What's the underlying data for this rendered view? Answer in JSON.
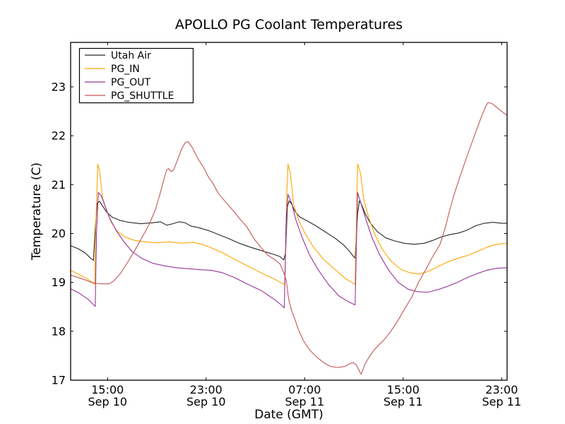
{
  "figure": {
    "background": "#ffffff",
    "frame_color": "#000000"
  },
  "chart_data": {
    "type": "line",
    "title": "APOLLO PG Coolant Temperatures",
    "xlabel": "Date (GMT)",
    "ylabel": "Temperature (C)",
    "grid": false,
    "x_axis": {
      "unit": "hours_since_Sep10_12:00_GMT",
      "range": [
        0,
        35.44
      ],
      "ticks": [
        {
          "value": 3,
          "time": "15:00",
          "date": "Sep 10"
        },
        {
          "value": 11,
          "time": "23:00",
          "date": "Sep 10"
        },
        {
          "value": 19,
          "time": "07:00",
          "date": "Sep 11"
        },
        {
          "value": 27,
          "time": "15:00",
          "date": "Sep 11"
        },
        {
          "value": 35,
          "time": "23:00",
          "date": "Sep 11"
        }
      ]
    },
    "y_axis": {
      "range": [
        17,
        23.91
      ],
      "ticks": [
        17,
        18,
        19,
        20,
        21,
        22,
        23
      ]
    },
    "legend": {
      "position": "upper left",
      "entries": [
        "Utah Air",
        "PG_IN",
        "PG_OUT",
        "PG_SHUTTLE"
      ]
    },
    "series": [
      {
        "name": "Utah Air",
        "color": "#262626",
        "points": [
          [
            0,
            19.75
          ],
          [
            0.6,
            19.69
          ],
          [
            1.2,
            19.6
          ],
          [
            1.6,
            19.5
          ],
          [
            1.85,
            19.45
          ],
          [
            2.0,
            20.1
          ],
          [
            2.15,
            20.62
          ],
          [
            2.35,
            20.66
          ],
          [
            2.6,
            20.56
          ],
          [
            2.95,
            20.43
          ],
          [
            3.4,
            20.33
          ],
          [
            4.0,
            20.27
          ],
          [
            4.7,
            20.23
          ],
          [
            5.7,
            20.2
          ],
          [
            6.6,
            20.22
          ],
          [
            7.3,
            20.24
          ],
          [
            7.8,
            20.17
          ],
          [
            8.3,
            20.2
          ],
          [
            8.8,
            20.24
          ],
          [
            9.3,
            20.22
          ],
          [
            9.8,
            20.15
          ],
          [
            10.4,
            20.12
          ],
          [
            11.2,
            20.06
          ],
          [
            12.0,
            19.98
          ],
          [
            12.8,
            19.9
          ],
          [
            13.7,
            19.8
          ],
          [
            14.6,
            19.72
          ],
          [
            15.5,
            19.65
          ],
          [
            16.4,
            19.58
          ],
          [
            17.0,
            19.53
          ],
          [
            17.3,
            19.46
          ],
          [
            17.45,
            19.6
          ],
          [
            17.6,
            20.55
          ],
          [
            17.75,
            20.67
          ],
          [
            17.95,
            20.6
          ],
          [
            18.2,
            20.46
          ],
          [
            18.6,
            20.34
          ],
          [
            19.2,
            20.26
          ],
          [
            19.9,
            20.16
          ],
          [
            20.7,
            20.03
          ],
          [
            21.5,
            19.9
          ],
          [
            22.2,
            19.76
          ],
          [
            22.7,
            19.62
          ],
          [
            23.0,
            19.52
          ],
          [
            23.1,
            19.5
          ],
          [
            23.3,
            20.4
          ],
          [
            23.45,
            20.67
          ],
          [
            23.65,
            20.58
          ],
          [
            23.95,
            20.39
          ],
          [
            24.35,
            20.21
          ],
          [
            24.9,
            20.04
          ],
          [
            25.6,
            19.91
          ],
          [
            26.3,
            19.85
          ],
          [
            27.1,
            19.8
          ],
          [
            27.9,
            19.78
          ],
          [
            28.7,
            19.8
          ],
          [
            29.4,
            19.86
          ],
          [
            30.1,
            19.93
          ],
          [
            30.8,
            19.98
          ],
          [
            31.5,
            20.01
          ],
          [
            32.2,
            20.07
          ],
          [
            32.9,
            20.16
          ],
          [
            33.6,
            20.21
          ],
          [
            34.3,
            20.23
          ],
          [
            35.0,
            20.21
          ],
          [
            35.44,
            20.21
          ]
        ]
      },
      {
        "name": "PG_IN",
        "color": "#ffa500",
        "points": [
          [
            0,
            19.25
          ],
          [
            0.7,
            19.16
          ],
          [
            1.3,
            19.08
          ],
          [
            1.7,
            19.01
          ],
          [
            1.95,
            18.96
          ],
          [
            2.05,
            20.2
          ],
          [
            2.2,
            21.42
          ],
          [
            2.35,
            21.28
          ],
          [
            2.6,
            20.73
          ],
          [
            2.9,
            20.48
          ],
          [
            3.3,
            20.23
          ],
          [
            3.8,
            20.04
          ],
          [
            4.4,
            19.93
          ],
          [
            5.2,
            19.86
          ],
          [
            6.0,
            19.83
          ],
          [
            7.0,
            19.81
          ],
          [
            8.0,
            19.83
          ],
          [
            9.0,
            19.8
          ],
          [
            9.9,
            19.82
          ],
          [
            10.7,
            19.78
          ],
          [
            11.5,
            19.7
          ],
          [
            12.4,
            19.6
          ],
          [
            13.4,
            19.46
          ],
          [
            14.5,
            19.32
          ],
          [
            15.6,
            19.18
          ],
          [
            16.6,
            19.06
          ],
          [
            17.2,
            18.98
          ],
          [
            17.4,
            18.95
          ],
          [
            17.55,
            20.8
          ],
          [
            17.65,
            21.42
          ],
          [
            17.85,
            21.22
          ],
          [
            18.1,
            20.6
          ],
          [
            18.5,
            20.28
          ],
          [
            19.0,
            20.02
          ],
          [
            19.7,
            19.73
          ],
          [
            20.5,
            19.48
          ],
          [
            21.4,
            19.28
          ],
          [
            22.3,
            19.08
          ],
          [
            22.9,
            18.99
          ],
          [
            23.1,
            18.96
          ],
          [
            23.3,
            21.42
          ],
          [
            23.55,
            21.22
          ],
          [
            23.8,
            20.7
          ],
          [
            24.2,
            20.33
          ],
          [
            24.7,
            19.98
          ],
          [
            25.3,
            19.68
          ],
          [
            26.0,
            19.44
          ],
          [
            26.8,
            19.27
          ],
          [
            27.5,
            19.2
          ],
          [
            28.3,
            19.17
          ],
          [
            29.0,
            19.22
          ],
          [
            29.8,
            19.32
          ],
          [
            30.6,
            19.42
          ],
          [
            31.4,
            19.49
          ],
          [
            32.2,
            19.55
          ],
          [
            33.0,
            19.63
          ],
          [
            33.8,
            19.72
          ],
          [
            34.6,
            19.78
          ],
          [
            35.44,
            19.8
          ]
        ]
      },
      {
        "name": "PG_OUT",
        "color": "#993399",
        "points": [
          [
            0,
            18.87
          ],
          [
            0.7,
            18.78
          ],
          [
            1.4,
            18.66
          ],
          [
            1.8,
            18.56
          ],
          [
            2.0,
            18.51
          ],
          [
            2.1,
            20.0
          ],
          [
            2.25,
            20.84
          ],
          [
            2.5,
            20.77
          ],
          [
            2.8,
            20.56
          ],
          [
            3.2,
            20.3
          ],
          [
            3.7,
            20.06
          ],
          [
            4.3,
            19.84
          ],
          [
            5.0,
            19.63
          ],
          [
            5.8,
            19.49
          ],
          [
            6.7,
            19.39
          ],
          [
            7.6,
            19.34
          ],
          [
            8.6,
            19.3
          ],
          [
            9.6,
            19.28
          ],
          [
            10.5,
            19.26
          ],
          [
            11.4,
            19.25
          ],
          [
            12.3,
            19.2
          ],
          [
            13.3,
            19.1
          ],
          [
            14.4,
            18.96
          ],
          [
            15.5,
            18.83
          ],
          [
            16.5,
            18.66
          ],
          [
            17.1,
            18.54
          ],
          [
            17.35,
            18.48
          ],
          [
            17.5,
            20.3
          ],
          [
            17.65,
            20.8
          ],
          [
            17.95,
            20.62
          ],
          [
            18.3,
            20.27
          ],
          [
            18.8,
            19.92
          ],
          [
            19.4,
            19.56
          ],
          [
            20.1,
            19.26
          ],
          [
            20.9,
            18.97
          ],
          [
            21.8,
            18.72
          ],
          [
            22.6,
            18.6
          ],
          [
            23.0,
            18.55
          ],
          [
            23.1,
            18.54
          ],
          [
            23.3,
            20.84
          ],
          [
            23.6,
            20.6
          ],
          [
            24.0,
            20.27
          ],
          [
            24.5,
            19.9
          ],
          [
            25.1,
            19.56
          ],
          [
            25.8,
            19.26
          ],
          [
            26.6,
            19.0
          ],
          [
            27.4,
            18.86
          ],
          [
            28.2,
            18.81
          ],
          [
            29.0,
            18.8
          ],
          [
            29.8,
            18.85
          ],
          [
            30.6,
            18.92
          ],
          [
            31.4,
            19.0
          ],
          [
            32.2,
            19.1
          ],
          [
            33.0,
            19.18
          ],
          [
            33.8,
            19.25
          ],
          [
            34.6,
            19.29
          ],
          [
            35.44,
            19.3
          ]
        ]
      },
      {
        "name": "PG_SHUTTLE",
        "color": "#c35655",
        "points": [
          [
            0,
            19.15
          ],
          [
            0.6,
            19.1
          ],
          [
            1.2,
            19.05
          ],
          [
            1.7,
            19.0
          ],
          [
            2.1,
            18.98
          ],
          [
            2.6,
            18.97
          ],
          [
            3.1,
            18.97
          ],
          [
            3.5,
            19.03
          ],
          [
            4.0,
            19.17
          ],
          [
            4.6,
            19.4
          ],
          [
            5.2,
            19.65
          ],
          [
            5.8,
            19.92
          ],
          [
            6.4,
            20.2
          ],
          [
            6.9,
            20.5
          ],
          [
            7.3,
            20.85
          ],
          [
            7.6,
            21.13
          ],
          [
            7.8,
            21.3
          ],
          [
            7.95,
            21.33
          ],
          [
            8.15,
            21.27
          ],
          [
            8.35,
            21.29
          ],
          [
            8.7,
            21.52
          ],
          [
            9.0,
            21.72
          ],
          [
            9.3,
            21.86
          ],
          [
            9.55,
            21.88
          ],
          [
            9.9,
            21.75
          ],
          [
            10.3,
            21.55
          ],
          [
            10.8,
            21.35
          ],
          [
            11.2,
            21.15
          ],
          [
            11.5,
            21.05
          ],
          [
            12.0,
            20.82
          ],
          [
            12.6,
            20.64
          ],
          [
            13.2,
            20.47
          ],
          [
            13.8,
            20.28
          ],
          [
            14.3,
            20.14
          ],
          [
            14.9,
            19.89
          ],
          [
            15.5,
            19.7
          ],
          [
            16.0,
            19.56
          ],
          [
            16.6,
            19.46
          ],
          [
            17.0,
            19.38
          ],
          [
            17.3,
            19.2
          ],
          [
            17.5,
            19.05
          ],
          [
            17.7,
            18.66
          ],
          [
            17.95,
            18.42
          ],
          [
            18.25,
            18.22
          ],
          [
            18.5,
            18.03
          ],
          [
            18.9,
            17.81
          ],
          [
            19.4,
            17.62
          ],
          [
            19.95,
            17.48
          ],
          [
            20.55,
            17.36
          ],
          [
            21.1,
            17.28
          ],
          [
            21.7,
            17.26
          ],
          [
            22.25,
            17.28
          ],
          [
            22.7,
            17.34
          ],
          [
            22.95,
            17.36
          ],
          [
            23.2,
            17.31
          ],
          [
            23.5,
            17.16
          ],
          [
            23.6,
            17.12
          ],
          [
            23.9,
            17.33
          ],
          [
            24.25,
            17.48
          ],
          [
            24.65,
            17.62
          ],
          [
            25.1,
            17.74
          ],
          [
            25.5,
            17.84
          ],
          [
            26.0,
            18.0
          ],
          [
            26.55,
            18.21
          ],
          [
            27.1,
            18.45
          ],
          [
            27.7,
            18.7
          ],
          [
            28.25,
            19.0
          ],
          [
            28.85,
            19.27
          ],
          [
            29.4,
            19.53
          ],
          [
            30.0,
            19.78
          ],
          [
            30.4,
            20.1
          ],
          [
            30.8,
            20.5
          ],
          [
            31.2,
            20.85
          ],
          [
            31.6,
            21.15
          ],
          [
            32.0,
            21.45
          ],
          [
            32.5,
            21.8
          ],
          [
            33.0,
            22.15
          ],
          [
            33.4,
            22.42
          ],
          [
            33.7,
            22.6
          ],
          [
            33.9,
            22.68
          ],
          [
            34.2,
            22.66
          ],
          [
            34.5,
            22.6
          ],
          [
            34.9,
            22.52
          ],
          [
            35.2,
            22.46
          ],
          [
            35.44,
            22.42
          ]
        ]
      }
    ]
  }
}
